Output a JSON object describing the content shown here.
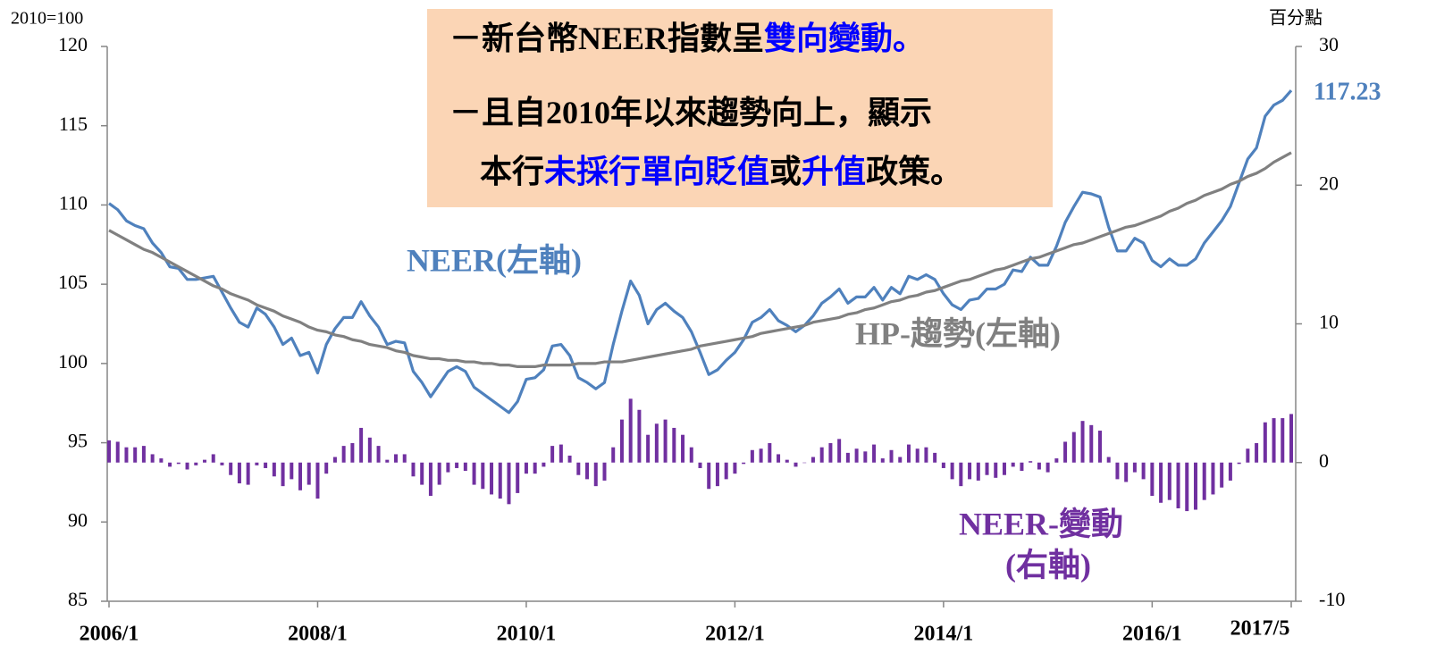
{
  "chart_data": {
    "type": "combo",
    "y_unit": "2010=100",
    "y2_unit": "百分點",
    "categories": [
      "2006/1",
      null,
      null,
      null,
      null,
      null,
      null,
      null,
      null,
      null,
      null,
      null,
      null,
      null,
      null,
      null,
      null,
      null,
      null,
      null,
      null,
      null,
      null,
      null,
      "2008/1",
      null,
      null,
      null,
      null,
      null,
      null,
      null,
      null,
      null,
      null,
      null,
      null,
      null,
      null,
      null,
      null,
      null,
      null,
      null,
      null,
      null,
      null,
      null,
      "2010/1",
      null,
      null,
      null,
      null,
      null,
      null,
      null,
      null,
      null,
      null,
      null,
      null,
      null,
      null,
      null,
      null,
      null,
      null,
      null,
      null,
      null,
      null,
      null,
      "2012/1",
      null,
      null,
      null,
      null,
      null,
      null,
      null,
      null,
      null,
      null,
      null,
      null,
      null,
      null,
      null,
      null,
      null,
      null,
      null,
      null,
      null,
      null,
      null,
      "2014/1",
      null,
      null,
      null,
      null,
      null,
      null,
      null,
      null,
      null,
      null,
      null,
      null,
      null,
      null,
      null,
      null,
      null,
      null,
      null,
      null,
      null,
      null,
      null,
      "2016/1",
      null,
      null,
      null,
      null,
      null,
      null,
      null,
      null,
      null,
      null,
      null,
      null,
      null,
      null,
      null,
      "2017/5"
    ],
    "series": [
      {
        "name": "NEER(左軸)",
        "type": "line",
        "color": "#4f81bd",
        "axis": "y",
        "values": [
          110.1,
          109.7,
          109.0,
          108.7,
          108.5,
          107.6,
          107.0,
          106.1,
          106.0,
          105.3,
          105.3,
          105.4,
          105.5,
          104.5,
          103.5,
          102.6,
          102.3,
          103.5,
          103.1,
          102.3,
          101.2,
          101.6,
          100.5,
          100.7,
          99.4,
          101.2,
          102.2,
          102.9,
          102.9,
          103.9,
          103.0,
          102.3,
          101.2,
          101.4,
          101.3,
          99.5,
          98.8,
          97.9,
          98.7,
          99.5,
          99.8,
          99.5,
          98.5,
          98.1,
          97.7,
          97.3,
          96.9,
          97.6,
          99.0,
          99.1,
          99.6,
          101.1,
          101.2,
          100.5,
          99.1,
          98.8,
          98.4,
          98.8,
          101.2,
          103.3,
          105.2,
          104.3,
          102.5,
          103.4,
          103.8,
          103.3,
          102.9,
          102.0,
          100.7,
          99.3,
          99.6,
          100.2,
          100.7,
          101.5,
          102.6,
          102.9,
          103.4,
          102.7,
          102.4,
          102.0,
          102.4,
          103.0,
          103.8,
          104.2,
          104.7,
          103.8,
          104.2,
          104.2,
          104.8,
          104.0,
          104.8,
          104.4,
          105.5,
          105.3,
          105.6,
          105.3,
          104.4,
          103.7,
          103.4,
          104.0,
          104.1,
          104.7,
          104.7,
          105.0,
          105.9,
          105.8,
          106.7,
          106.2,
          106.2,
          107.4,
          108.9,
          109.9,
          110.8,
          110.7,
          110.5,
          108.6,
          107.1,
          107.1,
          107.9,
          107.6,
          106.5,
          106.1,
          106.6,
          106.2,
          106.2,
          106.6,
          107.6,
          108.3,
          109.0,
          109.9,
          111.4,
          112.9,
          113.6,
          115.6,
          116.3,
          116.6,
          117.23
        ]
      },
      {
        "name": "HP-趨勢(左軸)",
        "type": "line",
        "color": "#808080",
        "axis": "y",
        "values": [
          108.4,
          108.1,
          107.8,
          107.5,
          107.2,
          107.0,
          106.7,
          106.4,
          106.1,
          105.8,
          105.5,
          105.2,
          104.9,
          104.7,
          104.4,
          104.2,
          104.0,
          103.7,
          103.5,
          103.3,
          103.0,
          102.8,
          102.6,
          102.3,
          102.1,
          102.0,
          101.8,
          101.7,
          101.5,
          101.4,
          101.2,
          101.1,
          101.0,
          100.8,
          100.7,
          100.5,
          100.4,
          100.3,
          100.3,
          100.2,
          100.2,
          100.1,
          100.1,
          100.0,
          100.0,
          99.9,
          99.9,
          99.8,
          99.8,
          99.8,
          99.9,
          99.9,
          99.9,
          99.9,
          100.0,
          100.0,
          100.0,
          100.1,
          100.1,
          100.1,
          100.2,
          100.3,
          100.4,
          100.5,
          100.6,
          100.7,
          100.8,
          100.9,
          101.1,
          101.2,
          101.3,
          101.4,
          101.5,
          101.6,
          101.7,
          101.9,
          102.0,
          102.1,
          102.2,
          102.3,
          102.4,
          102.6,
          102.7,
          102.8,
          102.9,
          103.1,
          103.2,
          103.4,
          103.5,
          103.7,
          103.9,
          104.0,
          104.2,
          104.3,
          104.5,
          104.6,
          104.8,
          105.0,
          105.2,
          105.3,
          105.5,
          105.7,
          105.9,
          106.0,
          106.2,
          106.4,
          106.6,
          106.7,
          106.9,
          107.1,
          107.3,
          107.5,
          107.6,
          107.8,
          108.0,
          108.2,
          108.4,
          108.6,
          108.7,
          108.9,
          109.1,
          109.3,
          109.6,
          109.8,
          110.1,
          110.3,
          110.6,
          110.8,
          111.0,
          111.3,
          111.5,
          111.8,
          112.0,
          112.3,
          112.7,
          113.0,
          113.3
        ]
      },
      {
        "name": "NEER-變動",
        "type": "bar",
        "color": "#7030a0",
        "axis": "y2",
        "values": [
          1.6,
          1.5,
          1.1,
          1.1,
          1.2,
          0.6,
          0.3,
          -0.3,
          -0.1,
          -0.5,
          -0.2,
          0.2,
          0.6,
          -0.2,
          -0.9,
          -1.5,
          -1.6,
          -0.2,
          -0.4,
          -1.0,
          -1.7,
          -1.2,
          -2.0,
          -1.6,
          -2.6,
          -0.8,
          0.4,
          1.2,
          1.4,
          2.5,
          1.8,
          1.2,
          0.2,
          0.6,
          0.6,
          -1.0,
          -1.6,
          -2.4,
          -1.6,
          -0.7,
          -0.4,
          -0.6,
          -1.6,
          -1.9,
          -2.3,
          -2.6,
          -3.0,
          -2.2,
          -0.8,
          -0.8,
          -0.3,
          1.2,
          1.3,
          0.5,
          -0.9,
          -1.2,
          -1.7,
          -1.3,
          1.1,
          3.1,
          4.6,
          3.8,
          2.0,
          2.8,
          3.1,
          2.5,
          2.0,
          1.1,
          -0.4,
          -1.9,
          -1.7,
          -1.2,
          -0.8,
          -0.1,
          0.9,
          1.0,
          1.4,
          0.6,
          0.2,
          -0.3,
          0.0,
          0.4,
          1.1,
          1.4,
          1.7,
          0.7,
          1.0,
          0.8,
          1.3,
          0.3,
          0.9,
          0.4,
          1.3,
          1.0,
          1.1,
          0.7,
          -0.4,
          -1.2,
          -1.7,
          -1.2,
          -1.3,
          -0.9,
          -1.1,
          -0.9,
          -0.3,
          -0.6,
          0.1,
          -0.5,
          -0.7,
          0.3,
          1.5,
          2.2,
          3.0,
          2.7,
          2.3,
          0.4,
          -1.2,
          -1.4,
          -0.7,
          -1.2,
          -2.4,
          -2.9,
          -2.7,
          -3.3,
          -3.5,
          -3.4,
          -2.7,
          -2.3,
          -1.8,
          -1.3,
          -0.1,
          1.0,
          1.4,
          2.9,
          3.2,
          3.2,
          3.5
        ]
      }
    ],
    "annotations": [
      "(右軸)"
    ],
    "text_box": {
      "color": "#fbd5b5",
      "lines": [
        [
          {
            "text": "－新台幣NEER指數呈",
            "color": "#000000"
          },
          {
            "text": "雙向變動。",
            "color": "#0000ff"
          }
        ],
        [
          {
            "text": "－且自2010年以來趨勢向上，顯示",
            "color": "#000000"
          }
        ],
        [
          {
            "text": "本行",
            "color": "#000000"
          },
          {
            "text": "未採行單向貶值",
            "color": "#0000ff"
          },
          {
            "text": "或",
            "color": "#000000"
          },
          {
            "text": "升值",
            "color": "#0000ff"
          },
          {
            "text": "政策。",
            "color": "#000000"
          }
        ]
      ]
    },
    "ylim": [
      85,
      120
    ],
    "yticks": [
      85,
      90,
      95,
      100,
      105,
      110,
      115,
      120
    ],
    "y2lim": [
      -10,
      30
    ],
    "y2ticks": [
      -10,
      0,
      10,
      20,
      30
    ],
    "grid": false
  }
}
